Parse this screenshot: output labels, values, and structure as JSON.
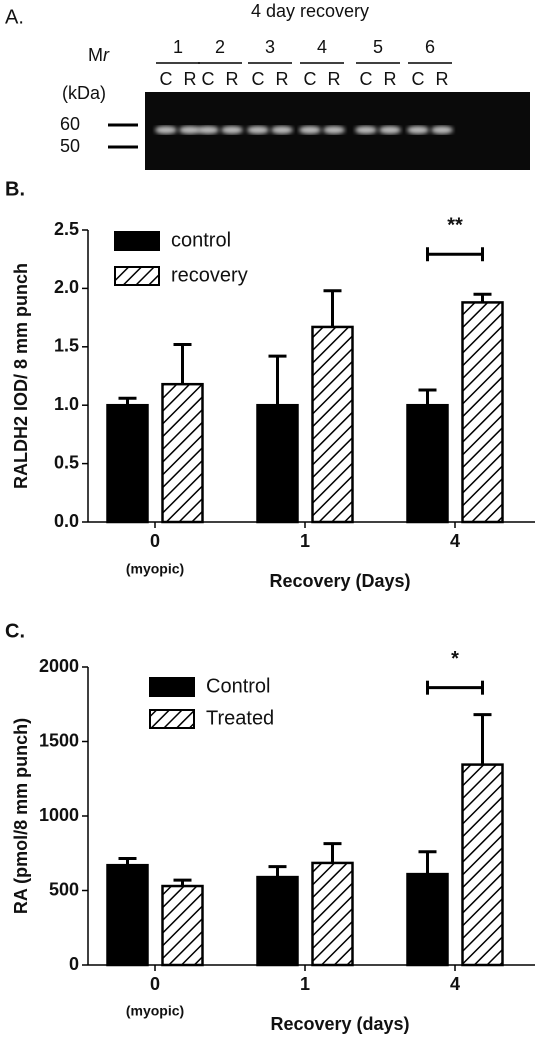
{
  "panel_a": {
    "label": "A.",
    "title": "4 day recovery",
    "mr_symbol": "M",
    "mr_subscript": "r",
    "mr_unit": "(kDa)",
    "markers_kda": [
      60,
      50
    ],
    "lanes": [
      "1",
      "2",
      "3",
      "4",
      "5",
      "6"
    ],
    "lane_conditions": [
      "C",
      "R"
    ]
  },
  "chart_data": [
    {
      "type": "bar",
      "panel_label": "B.",
      "y_label": "RALDH2  IOD/ 8 mm punch",
      "x_label": "Recovery (Days)",
      "categories": [
        "0",
        "1",
        "4"
      ],
      "category_note": "(myopic)",
      "series": [
        {
          "name": "control",
          "color": "#000000",
          "pattern": "solid",
          "values": [
            1.0,
            1.0,
            1.0
          ],
          "errors": [
            0.06,
            0.42,
            0.13
          ]
        },
        {
          "name": "recovery",
          "color": "#000000",
          "pattern": "hatch",
          "values": [
            1.18,
            1.67,
            1.88
          ],
          "errors": [
            0.34,
            0.31,
            0.07
          ]
        }
      ],
      "ylim": [
        0,
        2.5
      ],
      "yticks": [
        {
          "value": 0,
          "label": "0.0"
        },
        0.5,
        {
          "value": 1,
          "label": "1.0"
        },
        1.5,
        {
          "value": 2,
          "label": "2.0"
        },
        2.5
      ],
      "significance": [
        {
          "category": "4",
          "label": "**"
        }
      ]
    },
    {
      "type": "bar",
      "panel_label": "C.",
      "y_label": "RA (pmol/8 mm punch)",
      "x_label": "Recovery (days)",
      "categories": [
        "0",
        "1",
        "4"
      ],
      "category_note": "(myopic)",
      "series": [
        {
          "name": "Control",
          "color": "#000000",
          "pattern": "solid",
          "values": [
            670,
            590,
            610
          ],
          "errors": [
            45,
            70,
            150
          ]
        },
        {
          "name": "Treated",
          "color": "#000000",
          "pattern": "hatch",
          "values": [
            530,
            685,
            1345
          ],
          "errors": [
            40,
            130,
            335
          ]
        }
      ],
      "ylim": [
        0,
        2000
      ],
      "yticks": [
        0,
        500,
        1000,
        1500,
        2000
      ],
      "significance": [
        {
          "category": "4",
          "label": "*"
        }
      ]
    }
  ]
}
